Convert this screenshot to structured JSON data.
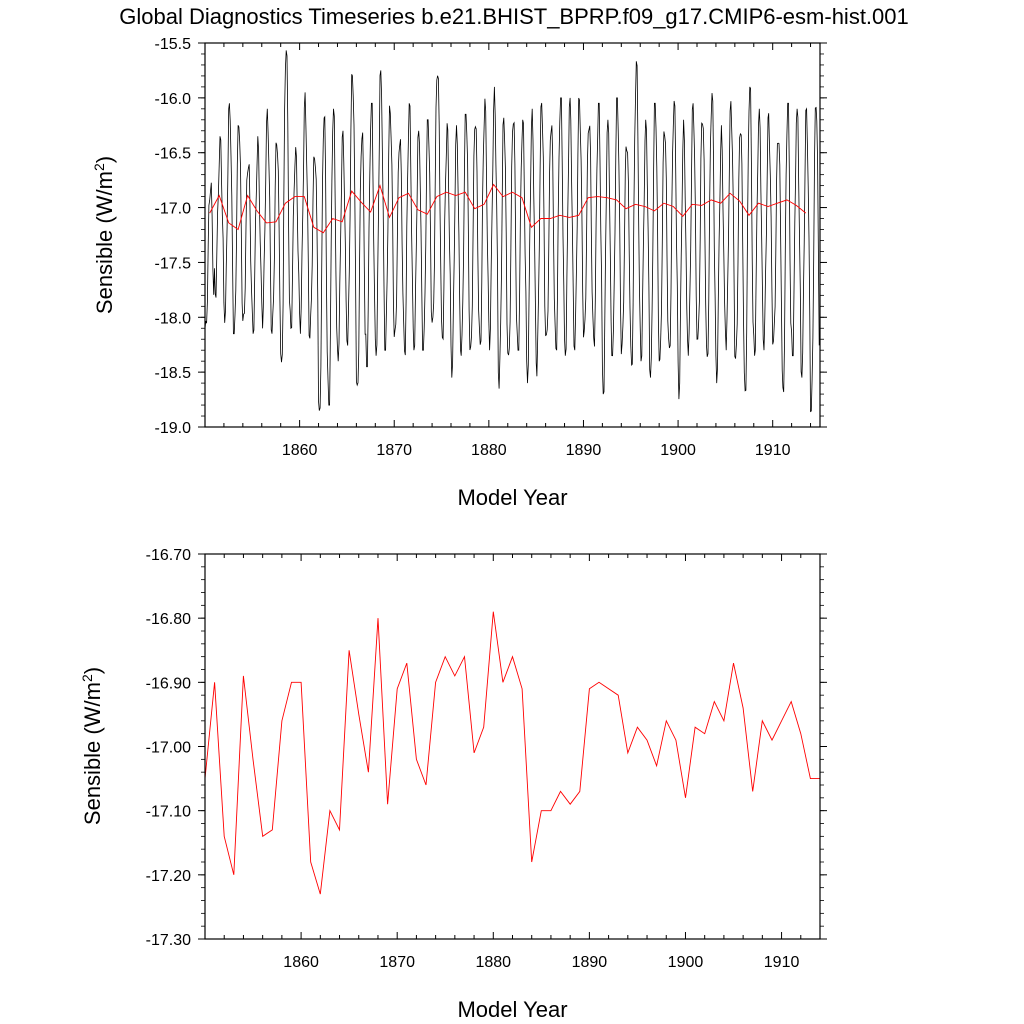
{
  "title": "Global Diagnostics Timeseries b.e21.BHIST_BPRP.f09_g17.CMIP6-esm-hist.001",
  "colors": {
    "monthly_line": "#000000",
    "annual_line": "#ff0000",
    "frame": "#000000",
    "background": "#ffffff"
  },
  "chart_data": [
    {
      "type": "line",
      "xlabel": "Model Year",
      "ylabel": {
        "main": "Sensible (W/m",
        "sup": "2",
        "close": ")"
      },
      "xlim": [
        1850,
        1915
      ],
      "ylim": [
        -19.0,
        -15.5
      ],
      "xticks": [
        1860,
        1870,
        1880,
        1890,
        1900,
        1910
      ],
      "xtick_labels": [
        "1860",
        "1870",
        "1880",
        "1890",
        "1900",
        "1910"
      ],
      "yticks": [
        -19.0,
        -18.5,
        -18.0,
        -17.5,
        -17.0,
        -16.5,
        -16.0,
        -15.5
      ],
      "ytick_labels": [
        "-19.0",
        "-18.5",
        "-18.0",
        "-17.5",
        "-17.0",
        "-16.5",
        "-16.0",
        "-15.5"
      ],
      "grid": false,
      "monthly_series": {
        "color": "#000000",
        "start_year": 1850,
        "months": 780,
        "annual_min": [
          -18.2,
          -17.85,
          -18.05,
          -18.15,
          -18.05,
          -18.2,
          -18.1,
          -18.15,
          -18.45,
          -18.1,
          -18.15,
          -18.25,
          -18.95,
          -18.8,
          -18.4,
          -18.3,
          -18.8,
          -18.45,
          -18.35,
          -18.3,
          -18.3,
          -18.4,
          -18.3,
          -18.3,
          -18.1,
          -18.3,
          -18.55,
          -18.35,
          -18.3,
          -18.3,
          -18.3,
          -18.65,
          -18.4,
          -18.3,
          -18.6,
          -18.55,
          -18.3,
          -18.3,
          -18.35,
          -18.3,
          -18.3,
          -18.3,
          -18.7,
          -18.35,
          -18.35,
          -18.6,
          -18.4,
          -18.55,
          -18.4,
          -18.4,
          -18.75,
          -18.35,
          -18.2,
          -18.4,
          -18.6,
          -18.3,
          -18.45,
          -18.7,
          -18.35,
          -18.3,
          -18.35,
          -18.75,
          -18.35,
          -18.55,
          -18.95
        ],
        "annual_max": [
          -16.7,
          -16.35,
          -16.05,
          -16.25,
          -16.55,
          -16.35,
          -16.1,
          -16.4,
          -15.55,
          -16.45,
          -15.95,
          -16.45,
          -16.15,
          -16.1,
          -16.3,
          -15.65,
          -16.25,
          -16.05,
          -15.75,
          -16.05,
          -16.25,
          -16.05,
          -16.3,
          -16.2,
          -15.65,
          -16.2,
          -16.25,
          -16.15,
          -16.2,
          -16.0,
          -15.9,
          -16.15,
          -16.2,
          -16.2,
          -16.1,
          -15.95,
          -16.2,
          -16.0,
          -16.0,
          -15.95,
          -16.1,
          -16.05,
          -16.2,
          -16.0,
          -16.3,
          -15.6,
          -16.2,
          -16.05,
          -16.25,
          -15.95,
          -16.2,
          -16.05,
          -16.2,
          -15.95,
          -16.25,
          -16.0,
          -16.25,
          -15.9,
          -16.1,
          -16.1,
          -16.25,
          -16.05,
          -16.1,
          -16.1,
          -15.9
        ]
      },
      "annual_series": {
        "color": "#ff0000",
        "x": [
          1850.5,
          1851.5,
          1852.5,
          1853.5,
          1854.5,
          1855.5,
          1856.5,
          1857.5,
          1858.5,
          1859.5,
          1860.5,
          1861.5,
          1862.5,
          1863.5,
          1864.5,
          1865.5,
          1866.5,
          1867.5,
          1868.5,
          1869.5,
          1870.5,
          1871.5,
          1872.5,
          1873.5,
          1874.5,
          1875.5,
          1876.5,
          1877.5,
          1878.5,
          1879.5,
          1880.5,
          1881.5,
          1882.5,
          1883.5,
          1884.5,
          1885.5,
          1886.5,
          1887.5,
          1888.5,
          1889.5,
          1890.5,
          1891.5,
          1892.5,
          1893.5,
          1894.5,
          1895.5,
          1896.5,
          1897.5,
          1898.5,
          1899.5,
          1900.5,
          1901.5,
          1902.5,
          1903.5,
          1904.5,
          1905.5,
          1906.5,
          1907.5,
          1908.5,
          1909.5,
          1910.5,
          1911.5,
          1912.5,
          1913.5
        ],
        "y": [
          -17.05,
          -16.89,
          -17.14,
          -17.2,
          -16.89,
          -17.03,
          -17.14,
          -17.13,
          -16.96,
          -16.9,
          -16.9,
          -17.18,
          -17.23,
          -17.1,
          -17.13,
          -16.85,
          -16.95,
          -17.04,
          -16.8,
          -17.09,
          -16.91,
          -16.87,
          -17.02,
          -17.06,
          -16.9,
          -16.86,
          -16.89,
          -16.86,
          -17.01,
          -16.97,
          -16.79,
          -16.9,
          -16.86,
          -16.91,
          -17.18,
          -17.1,
          -17.1,
          -17.07,
          -17.09,
          -17.07,
          -16.91,
          -16.9,
          -16.91,
          -16.93,
          -17.01,
          -16.97,
          -16.99,
          -17.03,
          -16.96,
          -16.99,
          -17.08,
          -16.97,
          -16.98,
          -16.93,
          -16.96,
          -16.87,
          -16.94,
          -17.07,
          -16.96,
          -16.99,
          -16.96,
          -16.93,
          -16.98,
          -17.05
        ]
      }
    },
    {
      "type": "line",
      "xlabel": "Model Year",
      "ylabel": {
        "main": "Sensible (W/m",
        "sup": "2",
        "close": ")"
      },
      "xlim": [
        1850,
        1914
      ],
      "ylim": [
        -17.3,
        -16.7
      ],
      "xticks": [
        1860,
        1870,
        1880,
        1890,
        1900,
        1910
      ],
      "xtick_labels": [
        "1860",
        "1870",
        "1880",
        "1890",
        "1900",
        "1910"
      ],
      "yticks": [
        -17.3,
        -17.2,
        -17.1,
        -17.0,
        -16.9,
        -16.8,
        -16.7
      ],
      "ytick_labels": [
        "-17.30",
        "-17.20",
        "-17.10",
        "-17.00",
        "-16.90",
        "-16.80",
        "-16.70"
      ],
      "grid": false,
      "annual_series": {
        "color": "#ff0000",
        "x": [
          1850.0,
          1851.0,
          1852.0,
          1853.0,
          1854.0,
          1855.0,
          1856.0,
          1857.0,
          1858.0,
          1859.0,
          1860.0,
          1861.0,
          1862.0,
          1863.0,
          1864.0,
          1865.0,
          1866.0,
          1867.0,
          1868.0,
          1869.0,
          1870.0,
          1871.0,
          1872.0,
          1873.0,
          1874.0,
          1875.0,
          1876.0,
          1877.0,
          1878.0,
          1879.0,
          1880.0,
          1881.0,
          1882.0,
          1883.0,
          1884.0,
          1885.0,
          1886.0,
          1887.0,
          1888.0,
          1889.0,
          1890.0,
          1891.0,
          1892.0,
          1893.0,
          1894.0,
          1895.0,
          1896.0,
          1897.0,
          1898.0,
          1899.0,
          1900.0,
          1901.0,
          1902.0,
          1903.0,
          1904.0,
          1905.0,
          1906.0,
          1907.0,
          1908.0,
          1909.0,
          1910.0,
          1911.0,
          1912.0,
          1913.0,
          1914.0
        ],
        "y": [
          -17.05,
          -16.9,
          -17.14,
          -17.2,
          -16.89,
          -17.02,
          -17.14,
          -17.13,
          -16.96,
          -16.9,
          -16.9,
          -17.18,
          -17.23,
          -17.1,
          -17.13,
          -16.85,
          -16.95,
          -17.04,
          -16.8,
          -17.09,
          -16.91,
          -16.87,
          -17.02,
          -17.06,
          -16.9,
          -16.86,
          -16.89,
          -16.86,
          -17.01,
          -16.97,
          -16.79,
          -16.9,
          -16.86,
          -16.91,
          -17.18,
          -17.1,
          -17.1,
          -17.07,
          -17.09,
          -17.07,
          -16.91,
          -16.9,
          -16.91,
          -16.92,
          -17.01,
          -16.97,
          -16.99,
          -17.03,
          -16.96,
          -16.99,
          -17.08,
          -16.97,
          -16.98,
          -16.93,
          -16.96,
          -16.87,
          -16.94,
          -17.07,
          -16.96,
          -16.99,
          -16.96,
          -16.93,
          -16.98,
          -17.05,
          -17.05
        ]
      }
    }
  ]
}
